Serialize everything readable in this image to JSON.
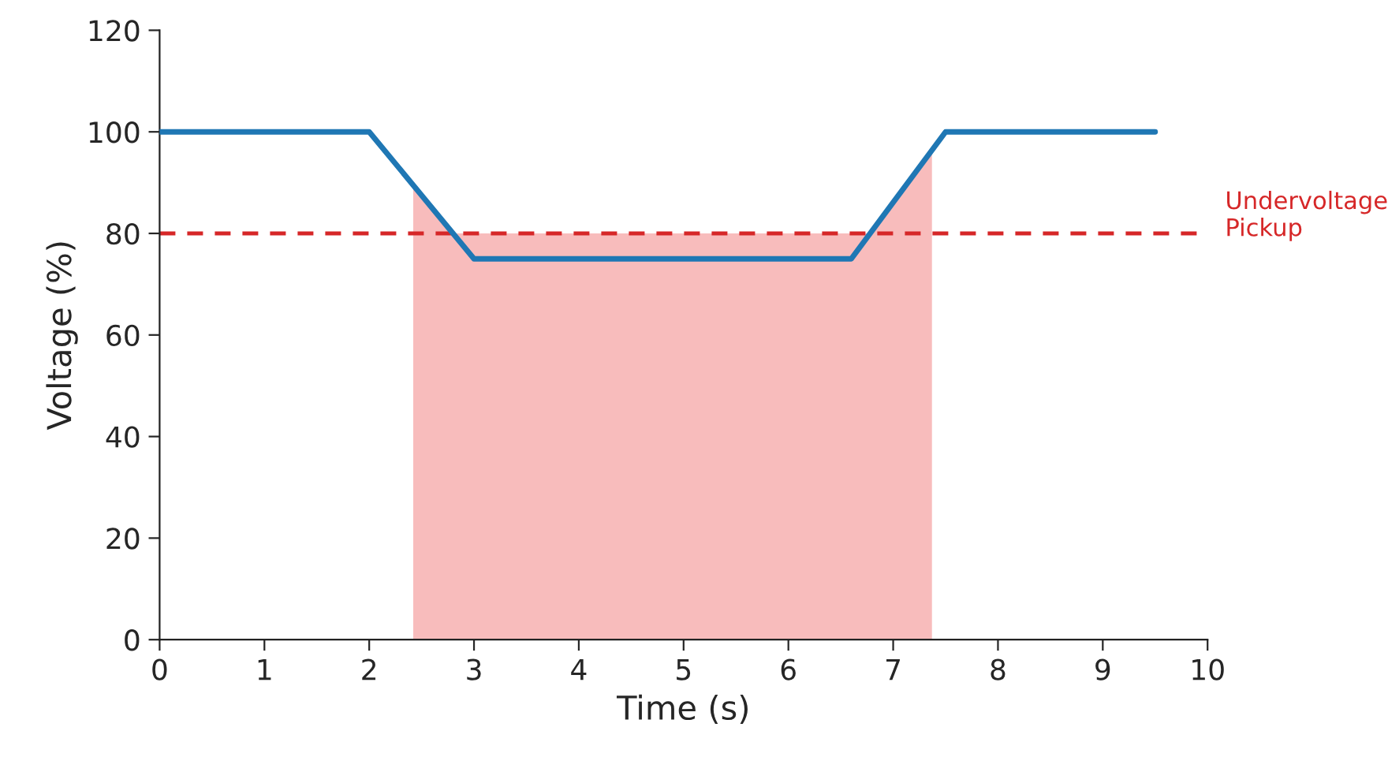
{
  "chart_data": {
    "type": "line",
    "xlabel": "Time (s)",
    "ylabel": "Voltage (%)",
    "xlim": [
      0,
      10
    ],
    "ylim": [
      0,
      120
    ],
    "xticks": [
      0,
      1,
      2,
      3,
      4,
      5,
      6,
      7,
      8,
      9,
      10
    ],
    "yticks": [
      0,
      20,
      40,
      60,
      80,
      100,
      120
    ],
    "grid": false,
    "legend": false,
    "marker": "none",
    "line_style": "solid",
    "series": [
      {
        "type": "area",
        "color": "#f8bcbc",
        "x": [
          2.42,
          2.8,
          6.78,
          7.37
        ],
        "values": [
          89.5,
          80,
          80,
          96.5
        ]
      },
      {
        "color": "#1f77b4",
        "x": [
          0,
          2,
          3,
          6.6,
          7.5,
          9.5
        ],
        "values": [
          100,
          100,
          75,
          75,
          100,
          100
        ]
      }
    ],
    "ref_lines": [
      {
        "axis": "y",
        "value": 80,
        "label": "Undervoltage\nPickup",
        "color": "#d62728",
        "line_style": "dashed"
      }
    ]
  }
}
